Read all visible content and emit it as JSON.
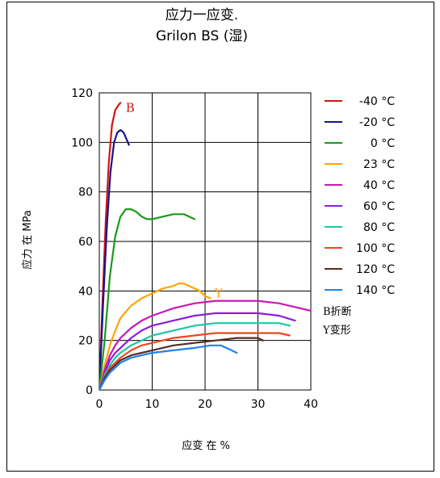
{
  "chart_data": {
    "type": "line",
    "title": "应力一应变.",
    "subtitle": "Grilon BS (湿)",
    "xlabel": "应变 在 %",
    "ylabel": "应力 在  MPa",
    "xlim": [
      0,
      40
    ],
    "ylim": [
      0,
      120
    ],
    "x_ticks": [
      "0",
      "10",
      "20",
      "30",
      "40"
    ],
    "y_ticks": [
      "0",
      "20",
      "40",
      "60",
      "80",
      "100",
      "120"
    ],
    "grid": true,
    "legend_position": "right",
    "series": [
      {
        "name": "-40 °C",
        "color": "#d21414",
        "x": [
          0,
          0.6,
          1.2,
          1.8,
          2.4,
          3.0,
          3.6,
          4.0
        ],
        "y": [
          0,
          35,
          68,
          92,
          107,
          113,
          115,
          116
        ]
      },
      {
        "name": "-20 °C",
        "color": "#16168c",
        "x": [
          0,
          0.7,
          1.4,
          2.1,
          2.8,
          3.4,
          4.0,
          4.6,
          5.2,
          5.6
        ],
        "y": [
          0,
          34,
          65,
          88,
          100,
          104,
          105,
          104,
          101,
          99
        ]
      },
      {
        "name": "0 °C",
        "color": "#1a9a1a",
        "x": [
          0,
          1.0,
          2.0,
          3.0,
          4.0,
          5.0,
          6.0,
          7.0,
          8.0,
          9.0,
          10.0,
          12.0,
          14.0,
          16.0,
          18.0
        ],
        "y": [
          0,
          20,
          46,
          62,
          70,
          73,
          73,
          72,
          70,
          69,
          69,
          70,
          71,
          71,
          69
        ]
      },
      {
        "name": "23 °C",
        "color": "#ffa500",
        "x": [
          0,
          1,
          2,
          3,
          4,
          6,
          8,
          10,
          12,
          14,
          15,
          16,
          17,
          18,
          19,
          20,
          21
        ],
        "y": [
          0,
          10,
          18,
          24,
          29,
          34,
          37,
          39,
          41,
          42,
          43,
          43,
          42,
          41,
          40,
          38,
          37
        ]
      },
      {
        "name": "40 °C",
        "color": "#c819b4",
        "x": [
          0,
          1,
          2,
          3,
          4,
          6,
          8,
          10,
          14,
          18,
          22,
          26,
          30,
          34,
          38,
          40
        ],
        "y": [
          0,
          8,
          14,
          18,
          21,
          25,
          28,
          30,
          33,
          35,
          36,
          36,
          36,
          35,
          33,
          32
        ]
      },
      {
        "name": "60 °C",
        "color": "#8a1ee0",
        "x": [
          0,
          1,
          2,
          3,
          4,
          6,
          8,
          10,
          14,
          18,
          22,
          26,
          30,
          34,
          37
        ],
        "y": [
          0,
          7,
          12,
          15,
          17,
          21,
          24,
          26,
          28,
          30,
          31,
          31,
          31,
          30,
          28
        ]
      },
      {
        "name": "80 °C",
        "color": "#1ec8a5",
        "x": [
          0,
          1,
          2,
          3,
          4,
          6,
          8,
          10,
          14,
          18,
          22,
          26,
          30,
          34,
          36
        ],
        "y": [
          0,
          6,
          10,
          13,
          15,
          18,
          20,
          22,
          24,
          26,
          27,
          27,
          27,
          27,
          26
        ]
      },
      {
        "name": "100 °C",
        "color": "#f0461e",
        "x": [
          0,
          1,
          2,
          3,
          4,
          6,
          8,
          10,
          14,
          18,
          22,
          26,
          30,
          34,
          36
        ],
        "y": [
          0,
          5,
          9,
          11,
          13,
          16,
          18,
          19,
          21,
          22,
          23,
          23,
          23,
          23,
          22
        ]
      },
      {
        "name": "120 °C",
        "color": "#5a2d1e",
        "x": [
          0,
          1,
          2,
          3,
          4,
          6,
          8,
          10,
          14,
          18,
          22,
          26,
          28,
          30,
          31
        ],
        "y": [
          0,
          5,
          8,
          10,
          12,
          14,
          15,
          16,
          18,
          19,
          20,
          21,
          21,
          21,
          20
        ]
      },
      {
        "name": "140 °C",
        "color": "#1e82f0",
        "x": [
          0,
          1,
          2,
          3,
          4,
          6,
          8,
          10,
          14,
          18,
          21,
          23,
          25,
          26
        ],
        "y": [
          0,
          4,
          7,
          9,
          11,
          13,
          14,
          15,
          16,
          17,
          18,
          18,
          16,
          15
        ]
      }
    ],
    "annotations": [
      {
        "text": "B",
        "x": 5.0,
        "y": 114,
        "color": "#d21414"
      },
      {
        "text": "Y",
        "x": 21.8,
        "y": 39,
        "color": "#ffa500"
      }
    ],
    "notes": [
      "B折断",
      "Y变形"
    ]
  }
}
